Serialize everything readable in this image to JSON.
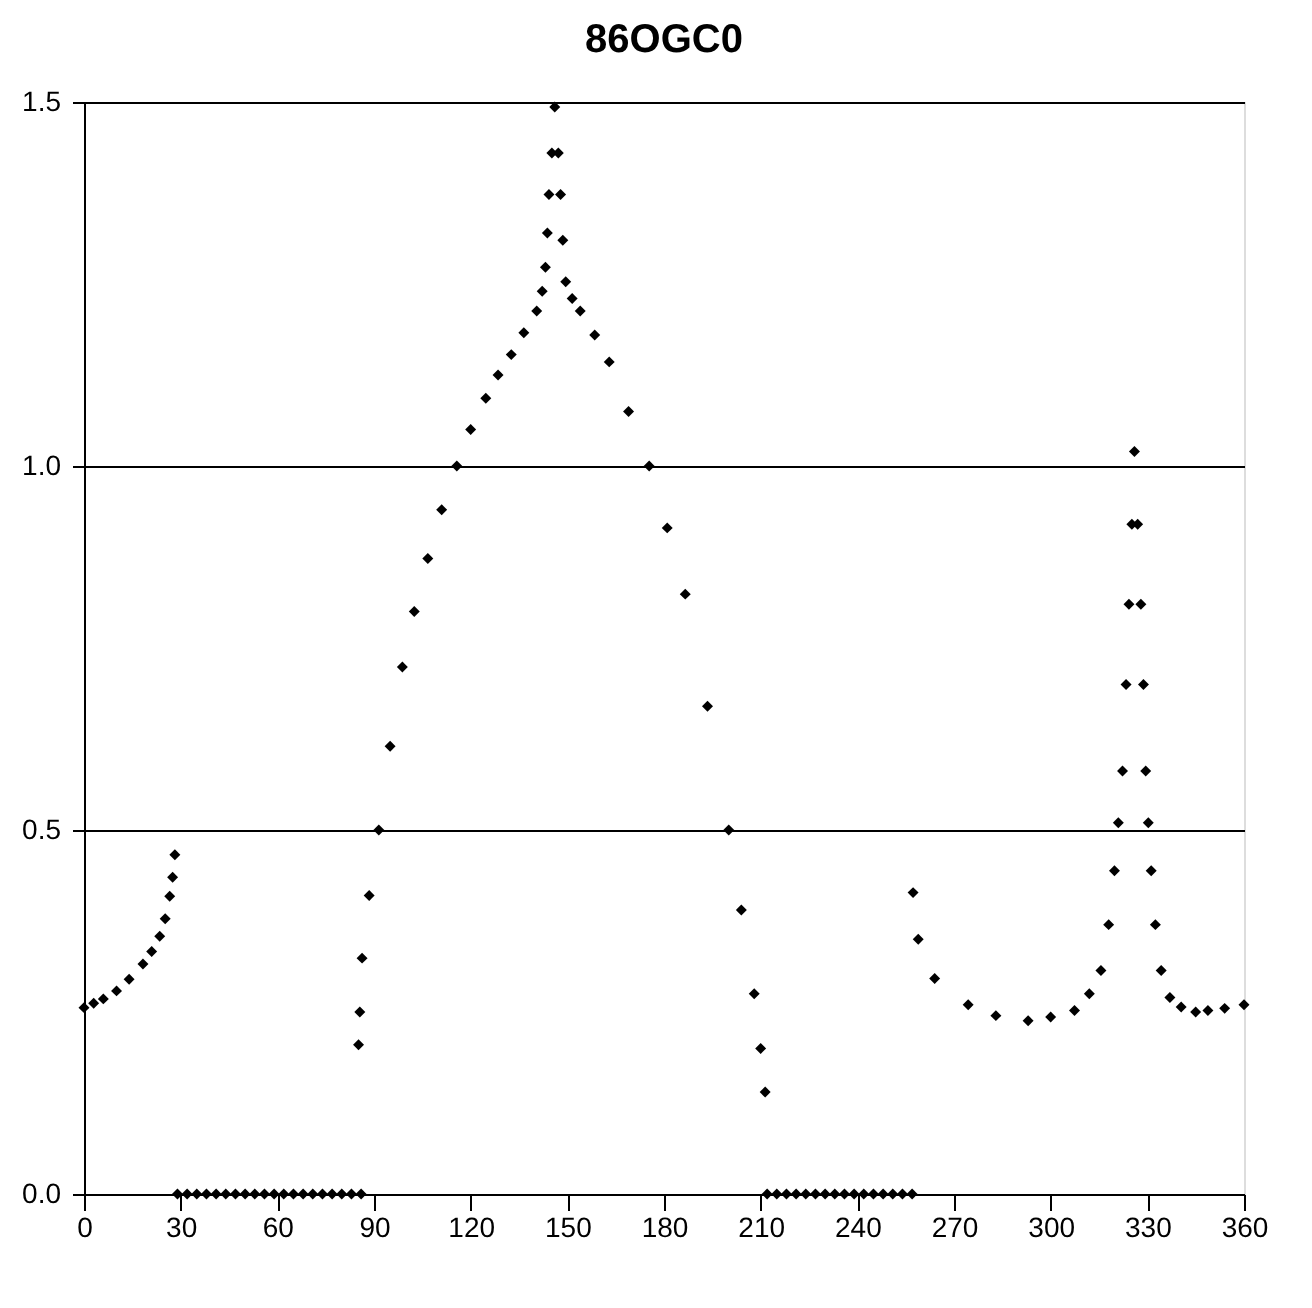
{
  "chart_data": {
    "type": "scatter",
    "title": "86OGC0",
    "x": [
      0,
      3,
      6,
      10.1,
      14,
      18.3,
      21,
      23.5,
      25.2,
      26.6,
      27.5,
      28.2,
      29,
      32,
      35,
      38,
      41,
      44,
      47,
      50,
      53,
      56,
      59,
      62,
      65,
      68,
      71,
      74,
      77,
      80,
      83,
      86,
      85.2,
      85.6,
      86.3,
      88.5,
      91.5,
      95,
      98.8,
      102.5,
      106.7,
      111,
      115.7,
      120,
      124.7,
      128.5,
      132.6,
      136.5,
      140.5,
      142.2,
      143.2,
      143.8,
      144.3,
      145.2,
      146.1,
      147.2,
      147.9,
      148.6,
      149.5,
      151.5,
      154,
      158.5,
      163,
      169,
      175.4,
      181,
      186.6,
      193.5,
      200.1,
      204,
      208,
      210,
      211.4,
      212,
      215,
      218,
      221,
      224,
      227,
      230,
      233,
      236,
      239,
      242,
      245,
      248,
      251,
      254,
      257,
      257.3,
      258.9,
      264,
      274.4,
      283,
      293,
      300,
      307.4,
      312,
      315.6,
      318,
      319.8,
      321,
      322.3,
      323.4,
      324.3,
      325.2,
      326,
      327,
      328,
      328.8,
      329.5,
      330.3,
      331.2,
      332.5,
      334.3,
      337,
      340.5,
      345,
      348.8,
      354,
      360
    ],
    "values": [
      0.256,
      0.262,
      0.268,
      0.279,
      0.295,
      0.316,
      0.333,
      0.354,
      0.378,
      0.409,
      0.435,
      0.466,
      0,
      0,
      0,
      0,
      0,
      0,
      0,
      0,
      0,
      0,
      0,
      0,
      0,
      0,
      0,
      0,
      0,
      0,
      0,
      0,
      0.205,
      0.25,
      0.324,
      0.41,
      0.5,
      0.615,
      0.724,
      0.8,
      0.873,
      0.94,
      1.0,
      1.05,
      1.093,
      1.125,
      1.153,
      1.183,
      1.213,
      1.24,
      1.273,
      1.32,
      1.373,
      1.43,
      1.493,
      1.43,
      1.373,
      1.31,
      1.253,
      1.23,
      1.213,
      1.18,
      1.143,
      1.075,
      1.0,
      0.915,
      0.824,
      0.67,
      0.5,
      0.39,
      0.275,
      0.2,
      0.14,
      0,
      0,
      0,
      0,
      0,
      0,
      0,
      0,
      0,
      0,
      0,
      0,
      0,
      0,
      0,
      0,
      0.414,
      0.35,
      0.296,
      0.26,
      0.245,
      0.238,
      0.243,
      0.252,
      0.275,
      0.307,
      0.37,
      0.444,
      0.51,
      0.581,
      0.7,
      0.81,
      0.92,
      1.02,
      0.92,
      0.81,
      0.7,
      0.581,
      0.51,
      0.444,
      0.37,
      0.307,
      0.27,
      0.257,
      0.25,
      0.252,
      0.255,
      0.26
    ],
    "color": "#000000",
    "marker": "diamond",
    "xlim": [
      0,
      360
    ],
    "xticks": [
      0,
      30,
      60,
      90,
      120,
      150,
      180,
      210,
      240,
      270,
      300,
      330,
      360
    ],
    "ylim": [
      0,
      1.5
    ],
    "yticks": [
      {
        "value": 0,
        "label": "0.0"
      },
      {
        "value": 0.5,
        "label": "0.5"
      },
      {
        "value": 1,
        "label": "1.0"
      },
      {
        "value": 1.5,
        "label": "1.5"
      }
    ],
    "grid": "y"
  }
}
